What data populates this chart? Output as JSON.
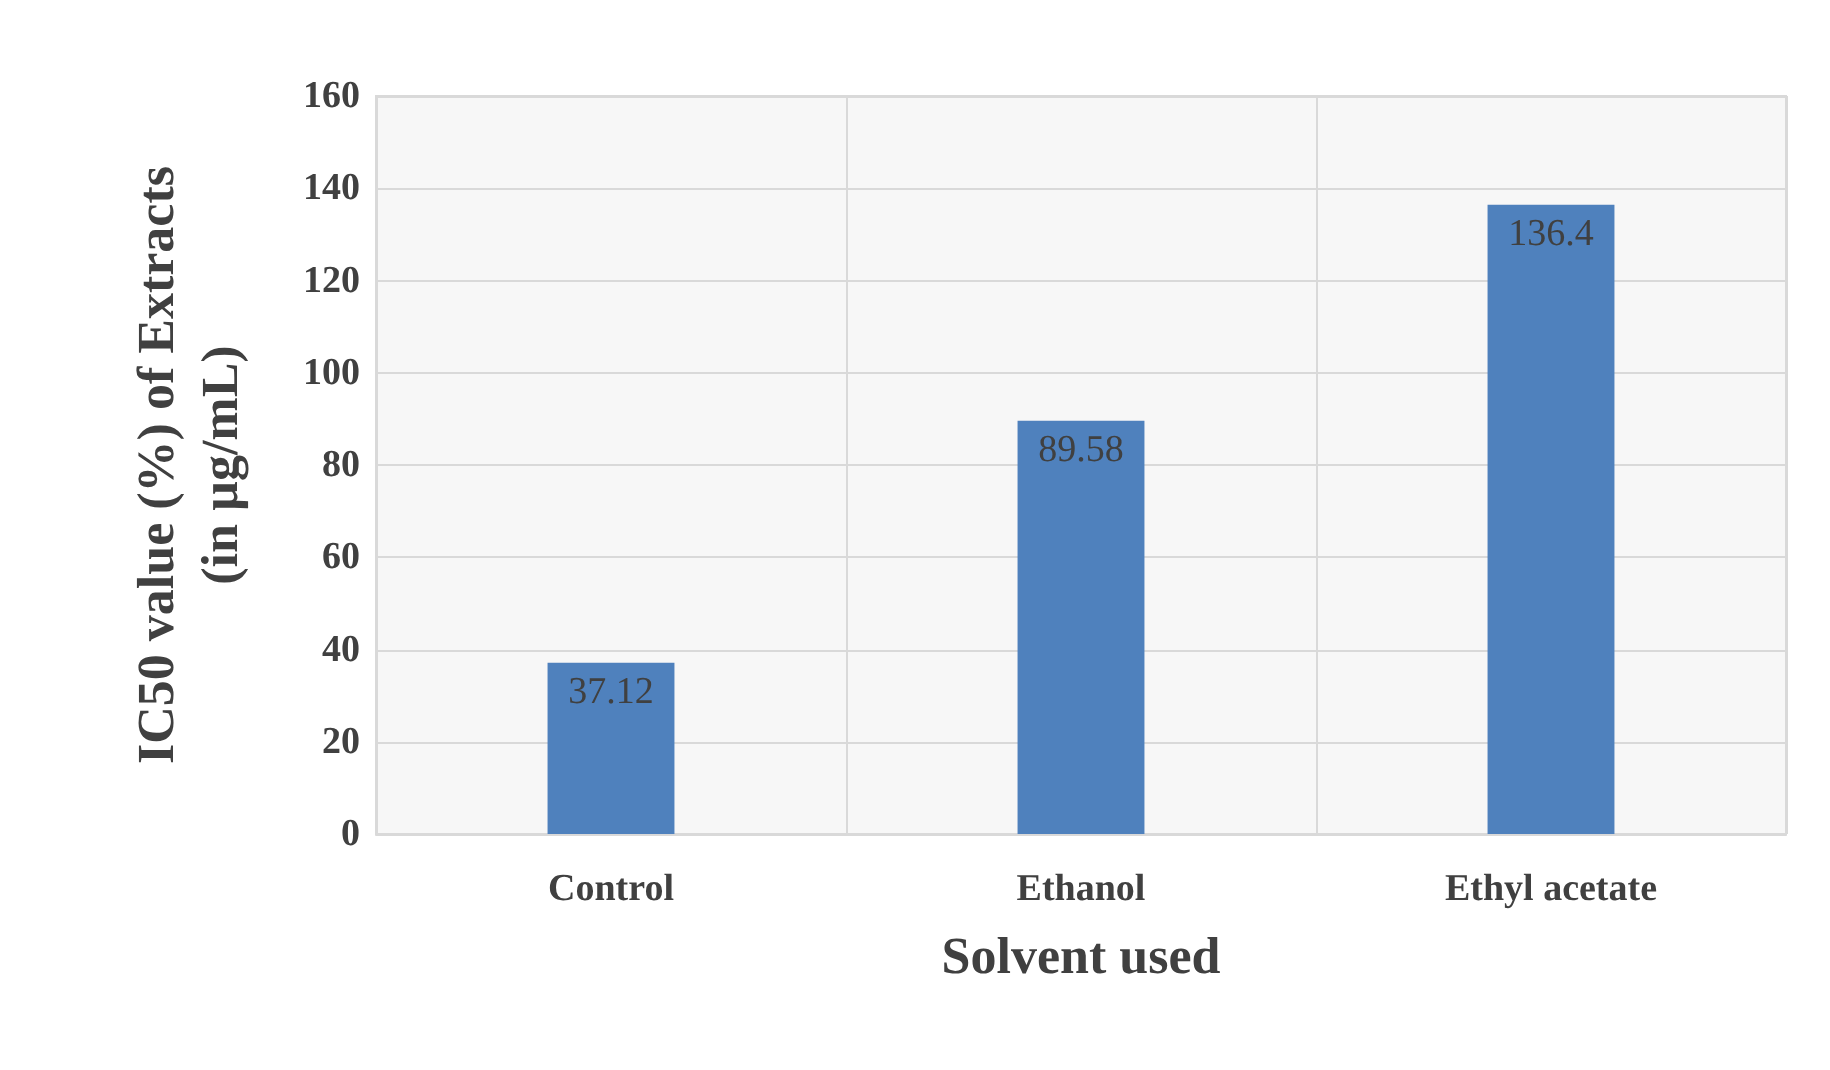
{
  "chart_data": {
    "type": "bar",
    "xlabel": "Solvent used",
    "ylabel": "IC50 value (%) of Extracts\n(in µg/mL)",
    "categories": [
      "Control",
      "Ethanol",
      "Ethyl acetate"
    ],
    "values": [
      37.12,
      89.58,
      136.4
    ],
    "color": "#4f81bd",
    "ylim": [
      0,
      160
    ],
    "yticks": [
      0,
      20,
      40,
      60,
      80,
      100,
      120,
      140,
      160
    ],
    "grid": true,
    "data_labels": true
  }
}
